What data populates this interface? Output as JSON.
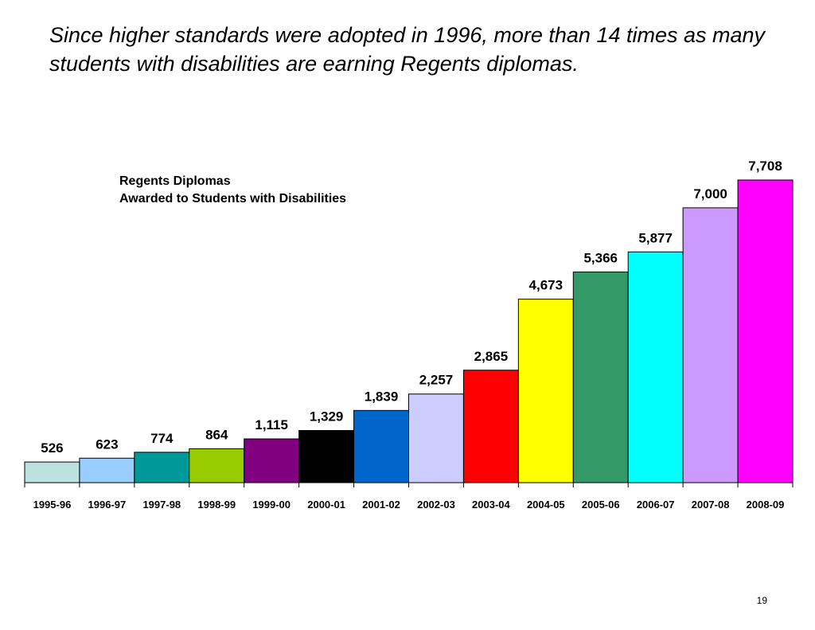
{
  "slide": {
    "headline": "Since higher standards were adopted in 1996, more than 14 times as many students with disabilities are earning Regents diplomas.",
    "page_number": "19"
  },
  "chart_data": {
    "type": "bar",
    "title_lines": [
      "Regents Diplomas",
      "Awarded to Students with Disabilities"
    ],
    "categories": [
      "1995-96",
      "1996-97",
      "1997-98",
      "1998-99",
      "1999-00",
      "2000-01",
      "2001-02",
      "2002-03",
      "2003-04",
      "2004-05",
      "2005-06",
      "2006-07",
      "2007-08",
      "2008-09"
    ],
    "values": [
      526,
      623,
      774,
      864,
      1115,
      1329,
      1839,
      2257,
      2865,
      4673,
      5366,
      5877,
      7000,
      7708
    ],
    "value_labels": [
      "526",
      "623",
      "774",
      "864",
      "1,115",
      "1,329",
      "1,839",
      "2,257",
      "2,865",
      "4,673",
      "5,366",
      "5,877",
      "7,000",
      "7,708"
    ],
    "bar_colors": [
      "#bde0e0",
      "#99ccff",
      "#009999",
      "#99cc00",
      "#800080",
      "#000000",
      "#0066cc",
      "#ccccff",
      "#ff0000",
      "#ffff00",
      "#339966",
      "#00ffff",
      "#cc99ff",
      "#ff00ff"
    ],
    "ylim": [
      0,
      7708
    ],
    "grid": false,
    "legend": "none",
    "data_labels": "above-bars"
  }
}
